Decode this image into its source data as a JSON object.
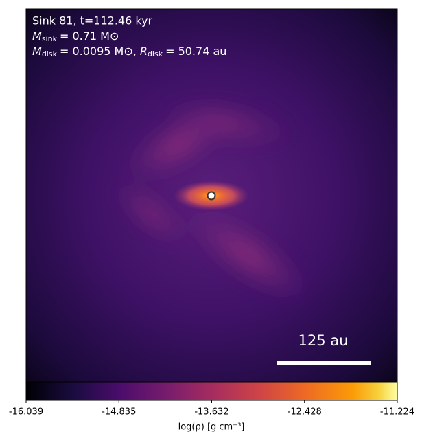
{
  "chart_data": {
    "type": "image",
    "annotations": [
      {
        "text": "Sink 81, t=112.46 kyr"
      },
      {
        "symbol": "M",
        "subscript": "sink",
        "text": "= 0.71 M⊙"
      },
      {
        "symbol": "M",
        "subscript": "disk",
        "text": "= 0.0095 M⊙,"
      },
      {
        "symbol": "R",
        "subscript": "disk",
        "text": "= 50.74 au"
      }
    ],
    "scale_bar": {
      "label": "125 au"
    },
    "colorbar": {
      "label": "log(ρ) [g cm⁻³]",
      "lim": [
        -16.039,
        -11.224
      ],
      "ticks": [
        -16.039,
        -14.835,
        -13.632,
        -12.428,
        -11.224
      ]
    }
  }
}
